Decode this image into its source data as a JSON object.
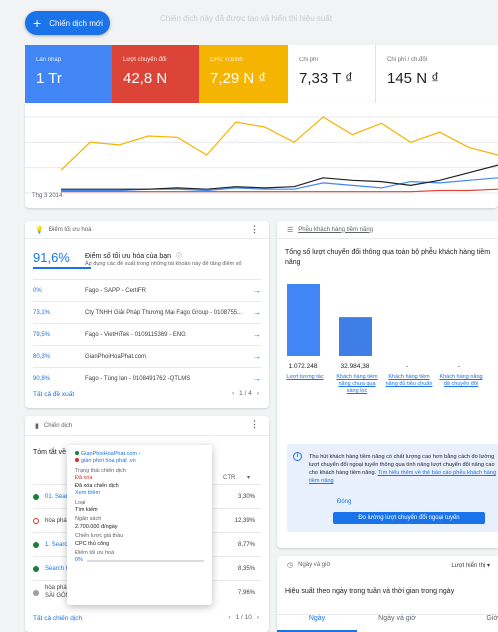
{
  "header": {
    "new_campaign": "Chiến dịch mới",
    "faded_text": "Chiến dịch này đã được tạo và hiển thị hiệu suất"
  },
  "metrics": [
    {
      "label": "Lần nhấp",
      "value": "1 Tr",
      "color": "#4285f4"
    },
    {
      "label": "Lượt chuyển đổi",
      "value": "42,8 N",
      "color": "#db4437"
    },
    {
      "label": "CPC Tr.bình",
      "value": "7,29 N ₫",
      "color": "#f4b400"
    },
    {
      "label": "Chi phí",
      "value": "7,33 T ₫",
      "color": "#ffffff"
    },
    {
      "label": "Chi phí / ch.đổi",
      "value": "145 N ₫",
      "color": "#ffffff"
    }
  ],
  "chart": {
    "date_label": "Thg 3 2014",
    "series": [
      {
        "name": "Lần nhấp",
        "color": "#4285f4",
        "values": [
          2,
          2,
          2,
          3,
          3,
          2,
          4,
          3,
          3,
          8,
          6,
          4,
          9,
          8,
          10,
          12
        ]
      },
      {
        "name": "Lượt chuyển đổi",
        "color": "#db4437",
        "values": [
          1,
          1,
          1,
          1,
          1,
          1,
          1,
          1,
          1,
          1,
          1,
          1,
          1,
          2,
          2,
          3
        ]
      },
      {
        "name": "CPC Tr.bình",
        "color": "#f4b400",
        "values": [
          18,
          40,
          38,
          45,
          44,
          30,
          56,
          52,
          40,
          60,
          46,
          55,
          40,
          48,
          36,
          30
        ]
      },
      {
        "name": "Chi phí",
        "color": "#202124",
        "values": [
          3,
          3,
          3,
          3,
          4,
          3,
          5,
          4,
          5,
          12,
          10,
          9,
          6,
          10,
          16,
          22
        ]
      }
    ]
  },
  "optimization": {
    "header": "Điểm tối ưu hoá",
    "score": "91,6%",
    "title": "Điểm số tối ưu hóa của bạn",
    "desc": "Áp dụng các đề xuất trong những tài khoản này để tăng điểm số",
    "rows": [
      {
        "pct": "0%",
        "name": "Fago - SAPP - CertiFR"
      },
      {
        "pct": "73,1%",
        "name": "Cty TNHH Giải Pháp Thương Mại Fago Group - 0108755..."
      },
      {
        "pct": "79,5%",
        "name": "Fago - VietHiTek - 0109115369 - ENG"
      },
      {
        "pct": "80,3%",
        "name": "GianPhoiHoaPhat.com"
      },
      {
        "pct": "90,8%",
        "name": "Fago - Tùng lan - 0108491762 -QTLMS"
      }
    ],
    "see_all": "Tất cả đề xuất",
    "pager": "1 / 4"
  },
  "campaigns": {
    "header": "Chiến dịch",
    "filter_label": "Tóm tắt về",
    "ctr_label": "CTR",
    "rows": [
      {
        "name": "01. Search",
        "status": "ok",
        "ctr": "3,30%"
      },
      {
        "name": "hòa phát",
        "status": "removed",
        "ctr": "12,39%"
      },
      {
        "name": "1. Search",
        "status": "ok",
        "ctr": "8,77%"
      },
      {
        "name": "Search H",
        "status": "ok",
        "ctr": "8,35%"
      },
      {
        "name": "hòa phát SÀI GÒN",
        "status": "ok",
        "ctr": "7,96%"
      }
    ],
    "see_all": "Tất cả chiến dịch",
    "pager": "1 / 10"
  },
  "popup": {
    "account": "GianPhoiHoaPhat.com ›",
    "campaign": "giàn phơi hòa phát .vn",
    "status_label": "Trạng thái chiến dịch",
    "status_value": "Đã xóa",
    "status_detail": "Đã xóa chiến dịch",
    "view_link": "Xem thêm",
    "type_label": "Loại",
    "type_value": "Tìm kiếm",
    "budget_label": "Ngân sách",
    "budget_value": "2.700.000 đ/ngày",
    "bid_label": "Chiến lược giá thầu",
    "bid_value": "CPC thủ công",
    "score_label": "Điểm tối ưu hoá",
    "score_value": "0%"
  },
  "funnel": {
    "header": "Phễu khách hàng tiềm năng",
    "title": "Tổng số lượt chuyển đổi thông qua toàn bộ phễu khách hàng tiềm năng",
    "values": [
      "1.072.248",
      "32.984,38",
      "-",
      "-"
    ],
    "categories": [
      "Lượt tương tác",
      "Khách hàng tiềm năng chưa qua sàng lọc",
      "Khách hàng tiềm năng đủ tiêu chuẩn",
      "Khách hàng năng đã chuyển đổi"
    ],
    "bar_levels": [
      1.0,
      0.54,
      0,
      0
    ],
    "info_text": "Thu hút khách hàng tiềm năng có chất lượng cao hơn bằng cách đo lường lượt chuyển đổi ngoại tuyến thông qua tính năng lượt chuyển đổi nâng cao cho khách hàng tiềm năng.",
    "info_link": "Tìm hiểu thêm về thẻ báo cáo phễu khách hàng tiềm năng",
    "close": "Đóng",
    "cta": "Đo lường lượt chuyển đổi ngoại tuyến"
  },
  "day_time": {
    "header": "Ngày và giờ",
    "metric_select": "Lượt hiển thị",
    "title": "Hiệu suất theo ngày trong tuần và thời gian trong ngày",
    "tabs": [
      "Ngày",
      "Ngày và giờ",
      "Giờ"
    ]
  }
}
